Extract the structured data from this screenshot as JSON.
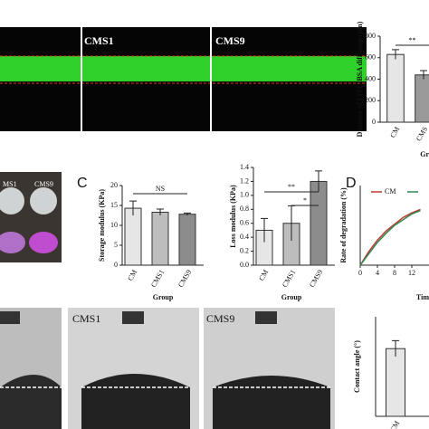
{
  "chart_data": [
    {
      "type": "bar",
      "ylabel": "Distance of FITC-BSA diffusion (μm)",
      "xlabel": "Gr",
      "categories": [
        "CM",
        "CMS"
      ],
      "values": [
        630,
        440
      ],
      "errors": [
        45,
        40
      ],
      "colors": [
        "#e6e6e6",
        "#9a9a9a"
      ],
      "ylim": [
        0,
        800
      ],
      "yticks": [
        0,
        200,
        400,
        600,
        800
      ],
      "annotations": [
        "**"
      ]
    },
    {
      "type": "bar",
      "ylabel": "Storage modulus (KPa)",
      "xlabel": "Group",
      "categories": [
        "CM",
        "CMS1",
        "CMS9"
      ],
      "values": [
        14.3,
        13.3,
        12.8
      ],
      "errors": [
        1.8,
        0.8,
        0.3
      ],
      "colors": [
        "#e6e6e6",
        "#bdbdbd",
        "#8c8c8c"
      ],
      "ylim": [
        0,
        20
      ],
      "yticks": [
        0,
        5,
        10,
        15,
        20
      ],
      "annotations": [
        "NS"
      ]
    },
    {
      "type": "bar",
      "ylabel": "Loss modulus (KPa)",
      "xlabel": "Group",
      "categories": [
        "CM",
        "CMS1",
        "CMS9"
      ],
      "values": [
        0.5,
        0.6,
        1.2
      ],
      "errors": [
        0.17,
        0.25,
        0.15
      ],
      "colors": [
        "#e6e6e6",
        "#bdbdbd",
        "#8c8c8c"
      ],
      "ylim": [
        0,
        1.4
      ],
      "yticks": [
        {
          "value": 0,
          "label": "0.0"
        },
        {
          "value": 0.2,
          "label": "0.2"
        },
        {
          "value": 0.4,
          "label": "0.4"
        },
        {
          "value": 0.6,
          "label": "0.6"
        },
        {
          "value": 0.8,
          "label": "0.8"
        },
        {
          "value": 1,
          "label": "1.0"
        },
        {
          "value": 1.2,
          "label": "1.2"
        },
        {
          "value": 1.4,
          "label": "1.4"
        }
      ],
      "annotations": [
        "**",
        "*"
      ]
    },
    {
      "type": "line",
      "ylabel": "Rate of degradation (%)",
      "xlabel": "Tim",
      "x": [
        0,
        2,
        4,
        6,
        8,
        10,
        12,
        14
      ],
      "xlim": [
        0,
        16
      ],
      "xticks": [
        0,
        4,
        8,
        12
      ],
      "ylim": [
        0,
        70
      ],
      "series": [
        {
          "name": "CM",
          "color": "#c0392b",
          "values": [
            0,
            12,
            22,
            30,
            36,
            42,
            46,
            49
          ]
        },
        {
          "color": "#2e8b57",
          "values": [
            0,
            10,
            20,
            28,
            35,
            40,
            45,
            48
          ]
        }
      ]
    },
    {
      "type": "bar",
      "ylabel": "Contact angle (°)",
      "categories": [
        "CM"
      ],
      "values": [
        34
      ],
      "errors": [
        4
      ],
      "colors": [
        "#e6e6e6"
      ],
      "ylim": [
        0,
        50
      ]
    }
  ],
  "panels": {
    "letters": [
      "C",
      "D"
    ],
    "fluorescence_labels": [
      "CMS1",
      "CMS9"
    ],
    "photo_labels": [
      "MS1",
      "CMS9"
    ],
    "contact_labels": [
      "CMS1",
      "CMS9"
    ]
  }
}
